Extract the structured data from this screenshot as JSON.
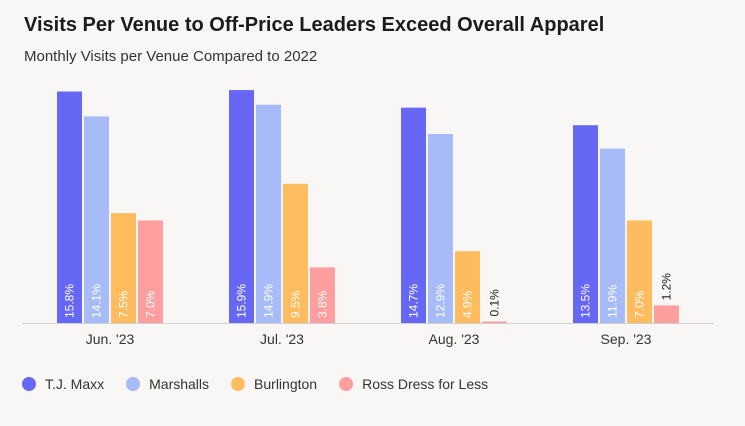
{
  "title": "Visits Per Venue to Off-Price Leaders Exceed Overall Apparel",
  "subtitle": "Monthly Visits per Venue Compared to 2022",
  "chart_data": {
    "type": "bar",
    "title": "Visits Per Venue to Off-Price Leaders Exceed Overall Apparel",
    "subtitle": "Monthly Visits per Venue Compared to 2022",
    "categories": [
      "Jun. '23",
      "Jul. '23",
      "Aug. '23",
      "Sep. '23"
    ],
    "series": [
      {
        "name": "T.J. Maxx",
        "color": "#6667f4",
        "values": [
          15.8,
          15.9,
          14.7,
          13.5
        ],
        "labels": [
          "15.8%",
          "15.9%",
          "14.7%",
          "13.5%"
        ]
      },
      {
        "name": "Marshalls",
        "color": "#a6bbf7",
        "values": [
          14.1,
          14.9,
          12.9,
          11.9
        ],
        "labels": [
          "14.1%",
          "14.9%",
          "12.9%",
          "11.9%"
        ]
      },
      {
        "name": "Burlington",
        "color": "#ffbc5e",
        "values": [
          7.5,
          9.5,
          4.9,
          7.0
        ],
        "labels": [
          "7.5%",
          "9.5%",
          "4.9%",
          "7.0%"
        ]
      },
      {
        "name": "Ross Dress for Less",
        "color": "#ff9e9e",
        "values": [
          7.0,
          3.8,
          0.1,
          1.2
        ],
        "labels": [
          "7.0%",
          "3.8%",
          "0.1%",
          "1.2%"
        ]
      }
    ],
    "xlabel": "",
    "ylabel": "",
    "ylim": [
      0,
      17
    ],
    "grid": false,
    "legend": "bottom-left"
  }
}
